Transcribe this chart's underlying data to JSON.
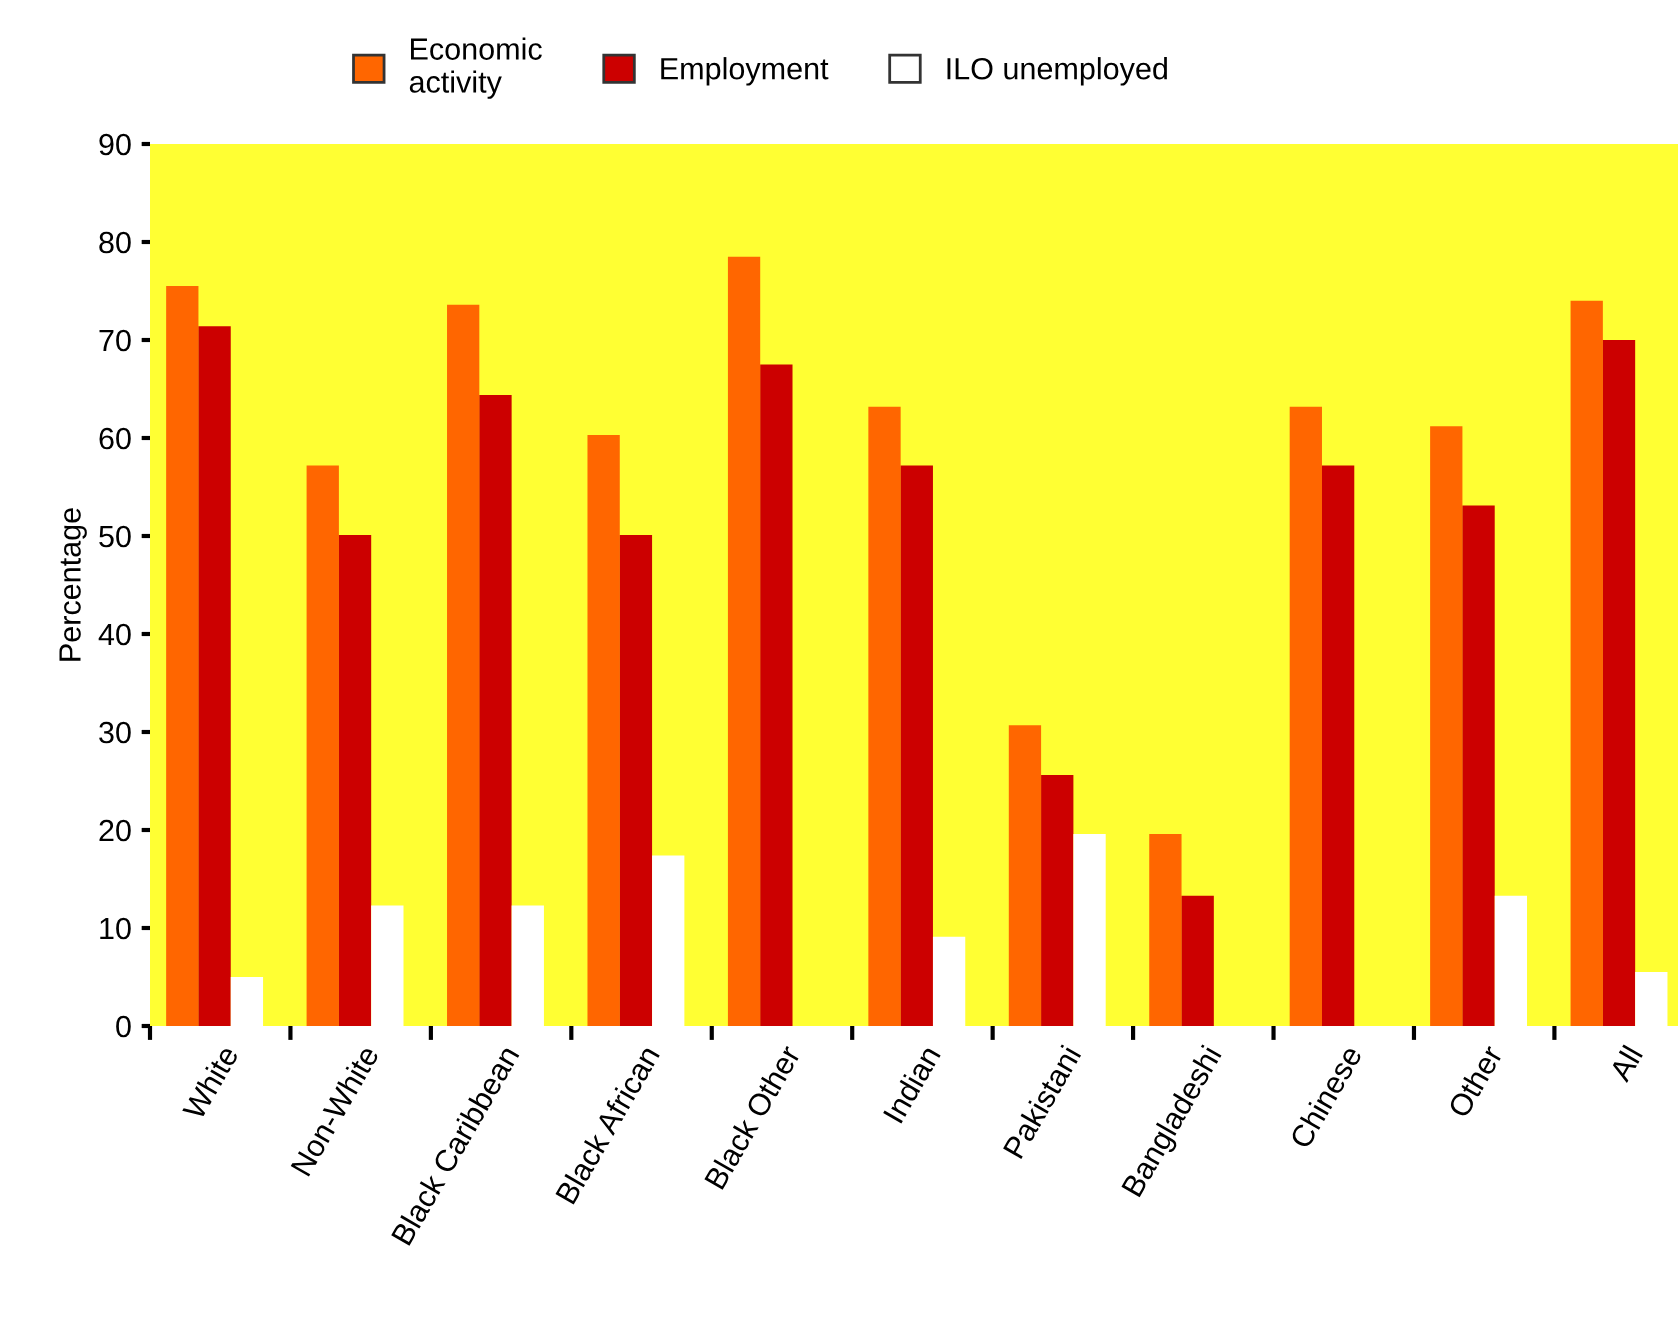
{
  "chart_data": {
    "type": "bar",
    "ylabel": "Percentage",
    "categories": [
      "White",
      "Non-White",
      "Black Caribbean",
      "Black African",
      "Black Other",
      "Indian",
      "Pakistani",
      "Bangladeshi",
      "Chinese",
      "Other",
      "All"
    ],
    "series": [
      {
        "name": "Economic\nactivity",
        "color": "#ff6600",
        "values": [
          75.5,
          57.2,
          73.6,
          60.3,
          78.5,
          63.2,
          30.7,
          19.6,
          63.2,
          61.2,
          74.0
        ]
      },
      {
        "name": "Employment",
        "color": "#cc0000",
        "values": [
          71.4,
          50.1,
          64.4,
          50.1,
          67.5,
          57.2,
          25.6,
          13.3,
          57.2,
          53.1,
          70.0
        ]
      },
      {
        "name": "ILO unemployed",
        "color": "#ffffff",
        "values": [
          5.0,
          12.3,
          12.3,
          17.4,
          null,
          9.1,
          19.6,
          null,
          null,
          13.3,
          5.5
        ]
      }
    ],
    "ylim": [
      0,
      90
    ],
    "yticks": [
      0,
      10,
      20,
      30,
      40,
      50,
      60,
      70,
      80,
      90
    ],
    "grid": false,
    "legend": "top"
  }
}
